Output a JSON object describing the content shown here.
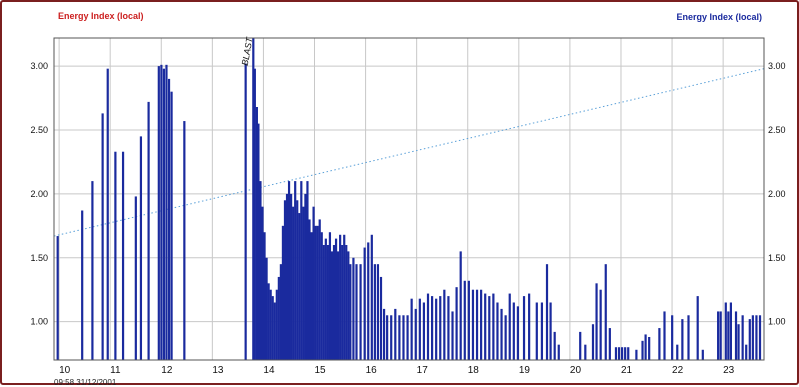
{
  "chart_data": {
    "type": "bar",
    "title_left": "Energy Index (local)",
    "title_right": "Energy Index (local)",
    "timestamp": "09:58 31/12/2001",
    "annotation": {
      "text": "BLAST",
      "x": 13.75
    },
    "xlim": [
      9.9,
      23.8
    ],
    "ylim": [
      0.7,
      3.22
    ],
    "x_ticks": [
      10,
      11,
      12,
      13,
      14,
      15,
      16,
      17,
      18,
      19,
      20,
      21,
      22,
      23
    ],
    "x_tick_labels": [
      "10",
      "11",
      "12",
      "13",
      "14",
      "15",
      "16",
      "17",
      "18",
      "19",
      "20",
      "21",
      "22",
      "23"
    ],
    "y_ticks": [
      1.0,
      1.5,
      2.0,
      2.5,
      3.0
    ],
    "y_tick_labels": [
      "1.00",
      "1.50",
      "2.00",
      "2.50",
      "3.00"
    ],
    "grid": true,
    "colors": {
      "bars": "#1a2a9e",
      "trend": "#5aa0d8",
      "left_title": "#cc2020",
      "right_title": "#1a2a9e",
      "grid": "#c8c8c8"
    },
    "trend_line": {
      "style": "dotted",
      "points": [
        [
          9.9,
          1.67
        ],
        [
          23.8,
          2.98
        ]
      ]
    },
    "series": [
      {
        "bars": [
          [
            9.97,
            1.67
          ],
          [
            10.45,
            1.87
          ],
          [
            10.65,
            2.1
          ],
          [
            10.85,
            2.63
          ],
          [
            10.95,
            2.98
          ],
          [
            11.1,
            2.33
          ],
          [
            11.25,
            2.33
          ],
          [
            11.5,
            1.98
          ],
          [
            11.6,
            2.45
          ],
          [
            11.75,
            2.72
          ],
          [
            11.95,
            3.0
          ],
          [
            12.0,
            3.01
          ],
          [
            12.05,
            2.98
          ],
          [
            12.1,
            3.01
          ],
          [
            12.15,
            2.9
          ],
          [
            12.2,
            2.8
          ],
          [
            12.45,
            2.57
          ],
          [
            13.65,
            3.02
          ],
          [
            13.8,
            3.25
          ],
          [
            13.83,
            2.98
          ],
          [
            13.87,
            2.68
          ],
          [
            13.9,
            2.55
          ],
          [
            13.94,
            2.1
          ],
          [
            13.98,
            1.9
          ],
          [
            14.02,
            1.7
          ],
          [
            14.06,
            1.5
          ],
          [
            14.1,
            1.3
          ],
          [
            14.14,
            1.25
          ],
          [
            14.18,
            1.2
          ],
          [
            14.22,
            1.15
          ],
          [
            14.26,
            1.25
          ],
          [
            14.3,
            1.35
          ],
          [
            14.34,
            1.45
          ],
          [
            14.38,
            1.75
          ],
          [
            14.42,
            1.95
          ],
          [
            14.46,
            2.0
          ],
          [
            14.5,
            2.1
          ],
          [
            14.54,
            2.0
          ],
          [
            14.58,
            1.9
          ],
          [
            14.62,
            2.1
          ],
          [
            14.66,
            1.95
          ],
          [
            14.7,
            1.85
          ],
          [
            14.74,
            2.1
          ],
          [
            14.78,
            1.9
          ],
          [
            14.82,
            2.0
          ],
          [
            14.86,
            2.1
          ],
          [
            14.9,
            1.8
          ],
          [
            14.94,
            1.7
          ],
          [
            14.98,
            1.9
          ],
          [
            15.02,
            1.75
          ],
          [
            15.06,
            1.75
          ],
          [
            15.1,
            1.8
          ],
          [
            15.14,
            1.7
          ],
          [
            15.18,
            1.6
          ],
          [
            15.22,
            1.65
          ],
          [
            15.26,
            1.6
          ],
          [
            15.3,
            1.7
          ],
          [
            15.34,
            1.55
          ],
          [
            15.38,
            1.6
          ],
          [
            15.42,
            1.65
          ],
          [
            15.46,
            1.55
          ],
          [
            15.5,
            1.68
          ],
          [
            15.54,
            1.6
          ],
          [
            15.58,
            1.68
          ],
          [
            15.62,
            1.6
          ],
          [
            15.66,
            1.55
          ],
          [
            15.7,
            1.45
          ],
          [
            15.76,
            1.5
          ],
          [
            15.82,
            1.45
          ],
          [
            15.9,
            1.45
          ],
          [
            15.98,
            1.58
          ],
          [
            16.05,
            1.62
          ],
          [
            16.12,
            1.68
          ],
          [
            16.18,
            1.45
          ],
          [
            16.24,
            1.45
          ],
          [
            16.3,
            1.35
          ],
          [
            16.36,
            1.1
          ],
          [
            16.42,
            1.05
          ],
          [
            16.5,
            1.05
          ],
          [
            16.58,
            1.1
          ],
          [
            16.66,
            1.05
          ],
          [
            16.74,
            1.05
          ],
          [
            16.82,
            1.05
          ],
          [
            16.9,
            1.18
          ],
          [
            16.98,
            1.1
          ],
          [
            17.06,
            1.18
          ],
          [
            17.14,
            1.15
          ],
          [
            17.22,
            1.22
          ],
          [
            17.3,
            1.2
          ],
          [
            17.38,
            1.18
          ],
          [
            17.46,
            1.2
          ],
          [
            17.54,
            1.25
          ],
          [
            17.62,
            1.2
          ],
          [
            17.7,
            1.08
          ],
          [
            17.78,
            1.27
          ],
          [
            17.86,
            1.55
          ],
          [
            17.94,
            1.32
          ],
          [
            18.02,
            1.32
          ],
          [
            18.1,
            1.25
          ],
          [
            18.18,
            1.25
          ],
          [
            18.26,
            1.25
          ],
          [
            18.34,
            1.22
          ],
          [
            18.42,
            1.2
          ],
          [
            18.5,
            1.22
          ],
          [
            18.58,
            1.15
          ],
          [
            18.66,
            1.1
          ],
          [
            18.74,
            1.05
          ],
          [
            18.82,
            1.22
          ],
          [
            18.9,
            1.15
          ],
          [
            18.98,
            1.12
          ],
          [
            19.1,
            1.2
          ],
          [
            19.2,
            1.22
          ],
          [
            19.35,
            1.15
          ],
          [
            19.45,
            1.15
          ],
          [
            19.55,
            1.45
          ],
          [
            19.62,
            1.15
          ],
          [
            19.7,
            0.92
          ],
          [
            19.78,
            0.82
          ],
          [
            20.2,
            0.92
          ],
          [
            20.3,
            0.82
          ],
          [
            20.45,
            0.98
          ],
          [
            20.52,
            1.3
          ],
          [
            20.6,
            1.25
          ],
          [
            20.7,
            1.45
          ],
          [
            20.78,
            0.95
          ],
          [
            20.9,
            0.8
          ],
          [
            20.96,
            0.8
          ],
          [
            21.02,
            0.8
          ],
          [
            21.08,
            0.8
          ],
          [
            21.14,
            0.8
          ],
          [
            21.3,
            0.78
          ],
          [
            21.42,
            0.85
          ],
          [
            21.48,
            0.9
          ],
          [
            21.55,
            0.88
          ],
          [
            21.75,
            0.95
          ],
          [
            21.85,
            1.08
          ],
          [
            22.0,
            1.05
          ],
          [
            22.1,
            0.82
          ],
          [
            22.2,
            1.02
          ],
          [
            22.32,
            1.05
          ],
          [
            22.5,
            1.2
          ],
          [
            22.6,
            0.78
          ],
          [
            22.9,
            1.08
          ],
          [
            22.95,
            1.08
          ],
          [
            23.05,
            1.15
          ],
          [
            23.1,
            1.08
          ],
          [
            23.15,
            1.15
          ],
          [
            23.25,
            1.08
          ],
          [
            23.3,
            0.98
          ],
          [
            23.38,
            1.05
          ],
          [
            23.45,
            0.82
          ],
          [
            23.52,
            1.02
          ],
          [
            23.58,
            1.05
          ],
          [
            23.65,
            1.05
          ],
          [
            23.72,
            1.05
          ]
        ]
      }
    ]
  }
}
